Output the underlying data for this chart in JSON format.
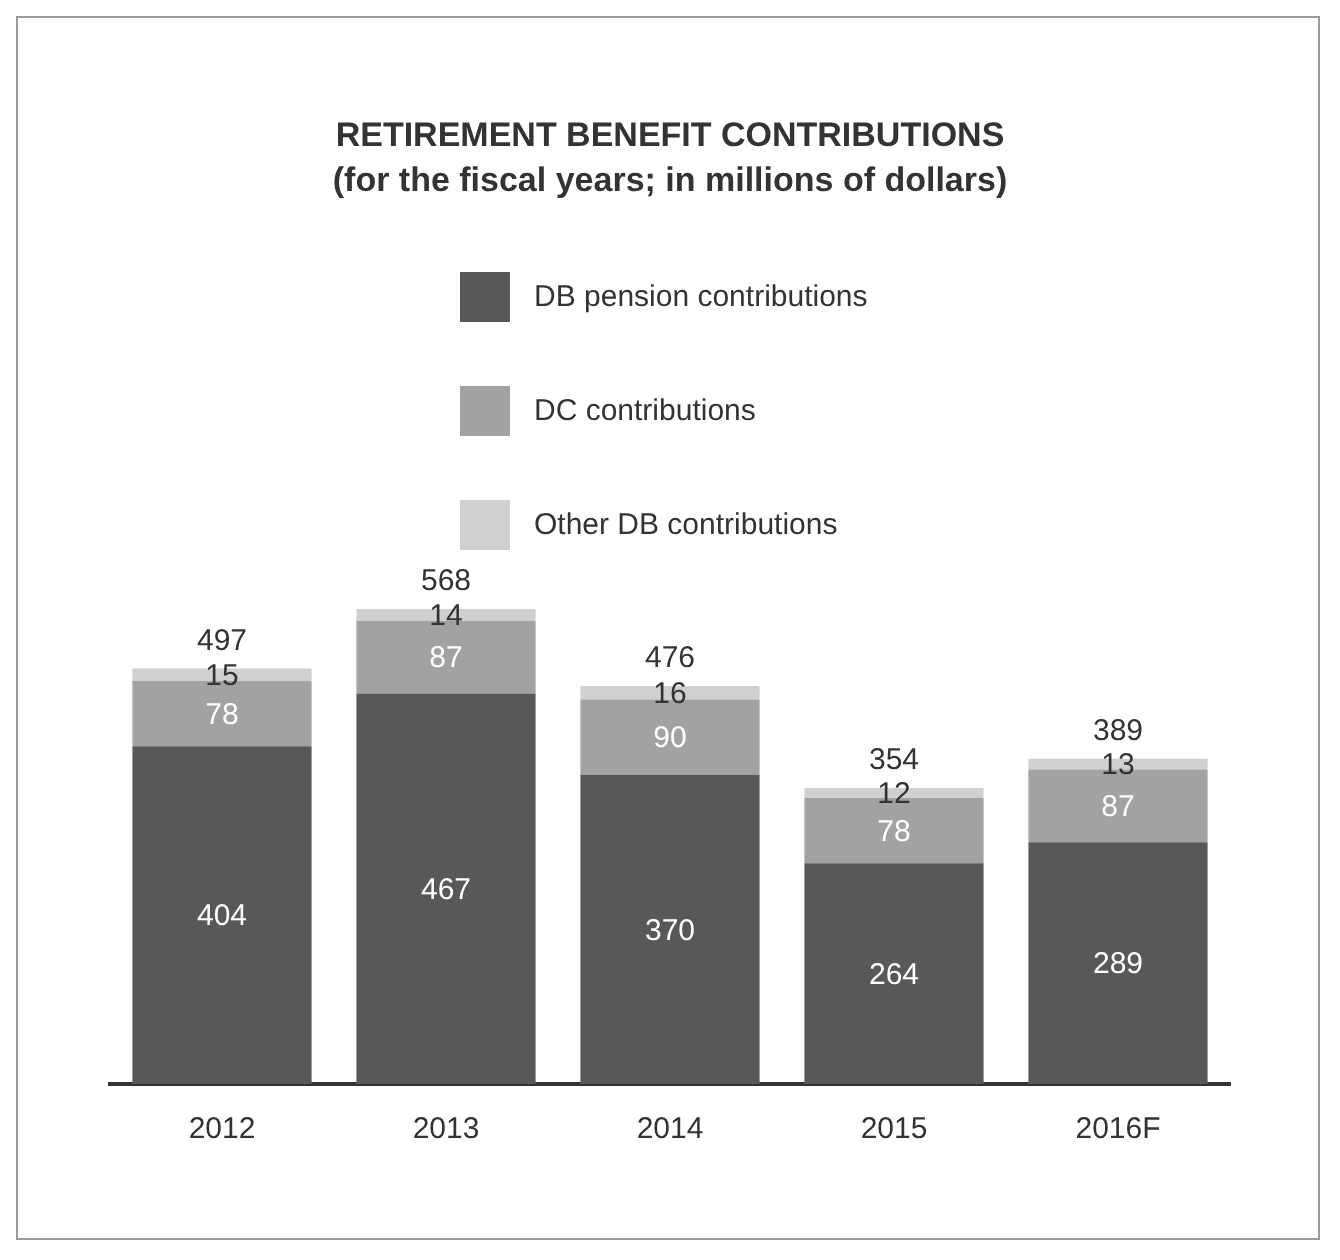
{
  "chart_data": {
    "type": "bar",
    "title": "RETIREMENT BENEFIT CONTRIBUTIONS",
    "subtitle": "(for the fiscal years; in millions of dollars)",
    "categories": [
      "2012",
      "2013",
      "2014",
      "2015",
      "2016F"
    ],
    "stacked": true,
    "series": [
      {
        "name": "DB pension contributions",
        "color": "#58585a",
        "values": [
          404,
          467,
          370,
          264,
          289
        ]
      },
      {
        "name": "DC contributions",
        "color": "#a2a2a4",
        "values": [
          78,
          87,
          90,
          78,
          87
        ]
      },
      {
        "name": "Other DB contributions",
        "color": "#d0d0d2",
        "values": [
          15,
          14,
          16,
          12,
          13
        ]
      }
    ],
    "data_labels": true,
    "totals": [
      "497",
      "568",
      "476",
      "354",
      "389"
    ],
    "legend": "top",
    "grid": false,
    "tick_labels": "x"
  }
}
